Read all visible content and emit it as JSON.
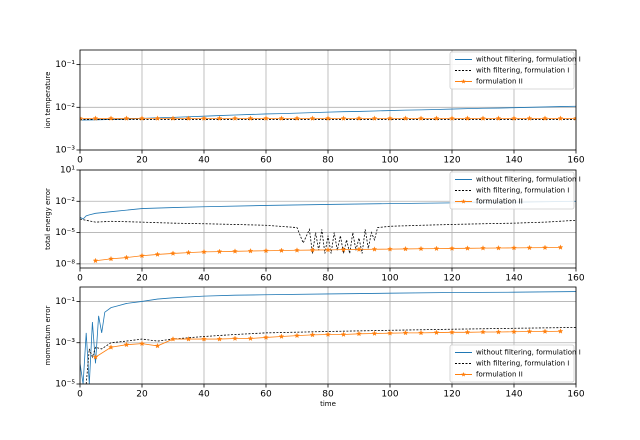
{
  "chart_data": [
    {
      "type": "line",
      "y_label": "ion temperature",
      "log_y": true,
      "grid": true,
      "legend": "upper right",
      "xlim": [
        0,
        160
      ],
      "xticks": [
        0,
        20,
        40,
        60,
        80,
        100,
        120,
        140,
        160
      ],
      "ylim": [
        0.001,
        0.22
      ],
      "yticks": [
        {
          "value": 0.001,
          "label": "10⁻³"
        },
        {
          "value": 0.01,
          "label": "10⁻²"
        },
        {
          "value": 0.1,
          "label": "10⁻¹"
        }
      ],
      "series": [
        {
          "name": "without filtering, formulation I",
          "color": "#1f77b4",
          "linestyle": "solid",
          "x": [
            0,
            5,
            10,
            15,
            20,
            25,
            30,
            35,
            40,
            45,
            50,
            55,
            60,
            65,
            70,
            75,
            80,
            85,
            90,
            95,
            100,
            105,
            110,
            115,
            120,
            125,
            130,
            135,
            140,
            145,
            150,
            155,
            160
          ],
          "values": [
            0.005,
            0.0051,
            0.0052,
            0.0053,
            0.0055,
            0.0057,
            0.0058,
            0.006,
            0.0062,
            0.0064,
            0.0066,
            0.0068,
            0.007,
            0.0071,
            0.0073,
            0.0075,
            0.0077,
            0.0079,
            0.008,
            0.0082,
            0.0084,
            0.0086,
            0.0087,
            0.0089,
            0.0091,
            0.0093,
            0.0095,
            0.0096,
            0.0098,
            0.01,
            0.0102,
            0.0104,
            0.0106
          ]
        },
        {
          "name": "with filtering, formulation I",
          "color": "#000000",
          "linestyle": "dashed",
          "x": [
            0,
            160
          ],
          "values": [
            0.0052,
            0.0052
          ]
        },
        {
          "name": "formulation II",
          "color": "#ff7f0e",
          "linestyle": "solid",
          "marker": "*",
          "x": [
            0,
            5,
            10,
            15,
            20,
            25,
            30,
            35,
            40,
            45,
            50,
            55,
            60,
            65,
            70,
            75,
            80,
            85,
            90,
            95,
            100,
            105,
            110,
            115,
            120,
            125,
            130,
            135,
            140,
            145,
            150,
            155,
            160
          ],
          "values": [
            0.0055,
            0.0055,
            0.0055,
            0.0055,
            0.0055,
            0.0055,
            0.0055,
            0.0055,
            0.0055,
            0.0055,
            0.0055,
            0.0055,
            0.0055,
            0.0055,
            0.0055,
            0.0055,
            0.0055,
            0.0055,
            0.0055,
            0.0055,
            0.0055,
            0.0055,
            0.0055,
            0.0055,
            0.0055,
            0.0055,
            0.0055,
            0.0055,
            0.0055,
            0.0055,
            0.0055,
            0.0055,
            0.0055
          ]
        }
      ]
    },
    {
      "type": "line",
      "y_label": "total energy error",
      "log_y": true,
      "grid": true,
      "legend": "upper right",
      "xlim": [
        0,
        160
      ],
      "xticks": [
        0,
        20,
        40,
        60,
        80,
        100,
        120,
        140,
        160
      ],
      "ylim": [
        4e-09,
        10
      ],
      "yticks": [
        {
          "value": 1e-08,
          "label": "10⁻⁸"
        },
        {
          "value": 1e-05,
          "label": "10⁻⁵"
        },
        {
          "value": 0.01,
          "label": "10⁻²"
        },
        {
          "value": 10,
          "label": "10¹"
        }
      ],
      "series": [
        {
          "name": "without filtering, formulation I",
          "color": "#1f77b4",
          "linestyle": "solid",
          "x": [
            0,
            1,
            2,
            3,
            5,
            10,
            20,
            30,
            40,
            60,
            80,
            100,
            120,
            140,
            160
          ],
          "values": [
            0.0003,
            0.0002,
            0.0004,
            0.0005,
            0.0007,
            0.001,
            0.002,
            0.0025,
            0.003,
            0.004,
            0.005,
            0.006,
            0.007,
            0.008,
            0.01
          ]
        },
        {
          "name": "with filtering, formulation I",
          "color": "#000000",
          "linestyle": "dashed",
          "x": [
            0,
            2,
            5,
            10,
            20,
            30,
            40,
            50,
            60,
            70,
            72,
            74,
            75,
            76,
            77,
            78,
            79,
            80,
            81,
            82,
            83,
            84,
            85,
            86,
            87,
            88,
            89,
            90,
            91,
            92,
            93,
            94,
            95,
            96,
            100,
            110,
            120,
            130,
            140,
            150,
            160
          ],
          "values": [
            0.0002,
            0.00015,
            0.0001,
            0.00012,
            0.0001,
            8e-05,
            7e-05,
            6e-05,
            5e-05,
            3e-05,
            1e-06,
            2e-05,
            1e-07,
            1e-05,
            2e-07,
            2e-05,
            1e-07,
            5e-06,
            1e-07,
            1e-05,
            2e-07,
            5e-06,
            1e-07,
            2e-06,
            1e-07,
            1e-05,
            2e-07,
            3e-06,
            1e-07,
            2e-05,
            3e-07,
            1e-05,
            2e-06,
            3e-05,
            4e-05,
            5e-05,
            6e-05,
            7e-05,
            8e-05,
            0.0001,
            0.00015
          ]
        },
        {
          "name": "formulation II",
          "color": "#ff7f0e",
          "linestyle": "solid",
          "marker": "*",
          "x": [
            5,
            10,
            15,
            20,
            25,
            30,
            35,
            40,
            45,
            50,
            55,
            60,
            65,
            70,
            75,
            80,
            85,
            90,
            95,
            100,
            105,
            110,
            115,
            120,
            125,
            130,
            135,
            140,
            145,
            150,
            155
          ],
          "values": [
            2e-08,
            3e-08,
            4e-08,
            6e-08,
            8e-08,
            1e-07,
            1.2e-07,
            1.4e-07,
            1.5e-07,
            1.6e-07,
            1.7e-07,
            1.8e-07,
            1.9e-07,
            2e-07,
            2.1e-07,
            2.2e-07,
            2.3e-07,
            2.4e-07,
            2.5e-07,
            2.6e-07,
            2.7e-07,
            2.8e-07,
            2.9e-07,
            3e-07,
            3.1e-07,
            3.2e-07,
            3.3e-07,
            3.4e-07,
            3.5e-07,
            3.6e-07,
            3.8e-07
          ]
        }
      ]
    },
    {
      "type": "line",
      "y_label": "momentum error",
      "x_label": "time",
      "log_y": true,
      "grid": true,
      "legend": "lower right",
      "xlim": [
        0,
        160
      ],
      "xticks": [
        0,
        20,
        40,
        60,
        80,
        100,
        120,
        140,
        160
      ],
      "ylim": [
        1e-05,
        0.5
      ],
      "yticks": [
        {
          "value": 1e-05,
          "label": "10⁻⁵"
        },
        {
          "value": 0.001,
          "label": "10⁻³"
        },
        {
          "value": 0.1,
          "label": "10⁻¹"
        }
      ],
      "series": [
        {
          "name": "without filtering, formulation I",
          "color": "#1f77b4",
          "linestyle": "solid",
          "x": [
            0,
            1,
            2,
            3,
            4,
            5,
            6,
            7,
            8,
            10,
            12,
            15,
            20,
            25,
            30,
            40,
            50,
            60,
            80,
            100,
            120,
            140,
            160
          ],
          "values": [
            0.0001,
            1e-05,
            0.003,
            1e-05,
            0.01,
            0.0001,
            0.02,
            0.003,
            0.03,
            0.05,
            0.06,
            0.08,
            0.1,
            0.13,
            0.15,
            0.18,
            0.2,
            0.21,
            0.23,
            0.25,
            0.27,
            0.28,
            0.3
          ]
        },
        {
          "name": "with filtering, formulation I",
          "color": "#000000",
          "linestyle": "dashed",
          "x": [
            2,
            3,
            4,
            5,
            7,
            10,
            15,
            20,
            25,
            30,
            40,
            50,
            60,
            80,
            100,
            120,
            140,
            160
          ],
          "values": [
            1e-05,
            0.0005,
            0.0002,
            0.0006,
            0.0005,
            0.001,
            0.0012,
            0.0015,
            0.0012,
            0.0015,
            0.002,
            0.0025,
            0.003,
            0.0035,
            0.004,
            0.0045,
            0.005,
            0.0055
          ]
        },
        {
          "name": "formulation II",
          "color": "#ff7f0e",
          "linestyle": "solid",
          "marker": "*",
          "x": [
            5,
            10,
            15,
            20,
            25,
            30,
            35,
            40,
            45,
            50,
            55,
            60,
            65,
            70,
            75,
            80,
            85,
            90,
            95,
            100,
            105,
            110,
            115,
            120,
            125,
            130,
            135,
            140,
            145,
            150,
            155
          ],
          "values": [
            0.0002,
            0.0006,
            0.0008,
            0.0009,
            0.0007,
            0.0015,
            0.0015,
            0.0015,
            0.0015,
            0.0016,
            0.0016,
            0.0018,
            0.002,
            0.0022,
            0.0024,
            0.0025,
            0.0025,
            0.0027,
            0.0028,
            0.0029,
            0.003,
            0.003,
            0.0031,
            0.0032,
            0.0032,
            0.0033,
            0.0033,
            0.0034,
            0.0035,
            0.0035,
            0.0036
          ]
        }
      ]
    }
  ]
}
